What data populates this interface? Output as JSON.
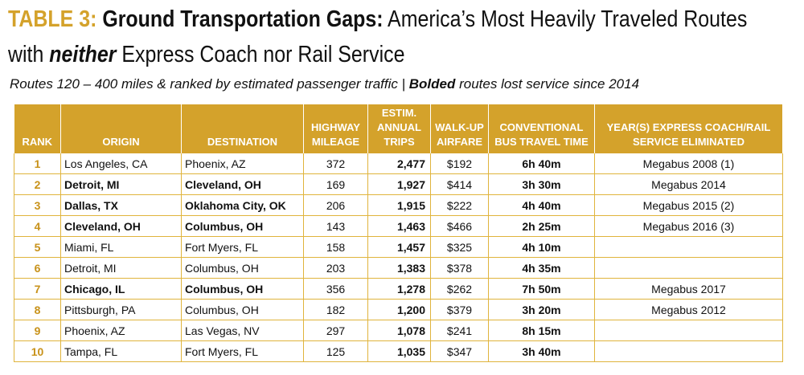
{
  "title": {
    "label": "TABLE 3:",
    "bold_part": "Ground Transportation Gaps:",
    "rest": "America’s Most Heavily Traveled Routes",
    "line2_prefix": "with",
    "line2_em": "neither",
    "line2_rest": "Express Coach nor Rail Service"
  },
  "subtitle": {
    "text": "Routes 120 – 400 miles & ranked by estimated passenger traffic |",
    "bold": "Bolded",
    "tail": "routes lost service since 2014"
  },
  "colors": {
    "header_bg": "#d4a22b",
    "rank_text": "#c8921a",
    "title_label": "#d4a22b"
  },
  "table": {
    "headers": {
      "rank": "RANK",
      "origin": "ORIGIN",
      "destination": "DESTINATION",
      "mileage": "HIGHWAY MILEAGE",
      "trips": "ESTIM. ANNUAL TRIPS",
      "airfare": "WALK-UP AIRFARE",
      "bus_time": "CONVENTIONAL BUS TRAVEL TIME",
      "eliminated": "YEAR(S) EXPRESS COACH/RAIL SERVICE ELIMINATED"
    },
    "rows": [
      {
        "rank": "1",
        "origin": "Los Angeles, CA",
        "destination": "Phoenix, AZ",
        "mileage": "372",
        "trips": "2,477",
        "airfare": "$192",
        "time": "6h 40m",
        "eliminated": "Megabus 2008 (1)",
        "bold": false
      },
      {
        "rank": "2",
        "origin": "Detroit, MI",
        "destination": "Cleveland, OH",
        "mileage": "169",
        "trips": "1,927",
        "airfare": "$414",
        "time": "3h 30m",
        "eliminated": "Megabus 2014",
        "bold": true
      },
      {
        "rank": "3",
        "origin": "Dallas, TX",
        "destination": "Oklahoma City, OK",
        "mileage": "206",
        "trips": "1,915",
        "airfare": "$222",
        "time": "4h 40m",
        "eliminated": "Megabus 2015 (2)",
        "bold": true
      },
      {
        "rank": "4",
        "origin": "Cleveland, OH",
        "destination": "Columbus, OH",
        "mileage": "143",
        "trips": "1,463",
        "airfare": "$466",
        "time": "2h 25m",
        "eliminated": "Megabus 2016 (3)",
        "bold": true
      },
      {
        "rank": "5",
        "origin": "Miami, FL",
        "destination": "Fort Myers, FL",
        "mileage": "158",
        "trips": "1,457",
        "airfare": "$325",
        "time": "4h 10m",
        "eliminated": "",
        "bold": false
      },
      {
        "rank": "6",
        "origin": "Detroit, MI",
        "destination": "Columbus, OH",
        "mileage": "203",
        "trips": "1,383",
        "airfare": "$378",
        "time": "4h 35m",
        "eliminated": "",
        "bold": false
      },
      {
        "rank": "7",
        "origin": "Chicago, IL",
        "destination": "Columbus, OH",
        "mileage": "356",
        "trips": "1,278",
        "airfare": "$262",
        "time": "7h 50m",
        "eliminated": "Megabus 2017",
        "bold": true
      },
      {
        "rank": "8",
        "origin": "Pittsburgh, PA",
        "destination": "Columbus, OH",
        "mileage": "182",
        "trips": "1,200",
        "airfare": "$379",
        "time": "3h 20m",
        "eliminated": "Megabus 2012",
        "bold": false
      },
      {
        "rank": "9",
        "origin": "Phoenix, AZ",
        "destination": "Las Vegas, NV",
        "mileage": "297",
        "trips": "1,078",
        "airfare": "$241",
        "time": "8h 15m",
        "eliminated": "",
        "bold": false
      },
      {
        "rank": "10",
        "origin": "Tampa, FL",
        "destination": "Fort Myers, FL",
        "mileage": "125",
        "trips": "1,035",
        "airfare": "$347",
        "time": "3h 40m",
        "eliminated": "",
        "bold": false
      }
    ]
  }
}
